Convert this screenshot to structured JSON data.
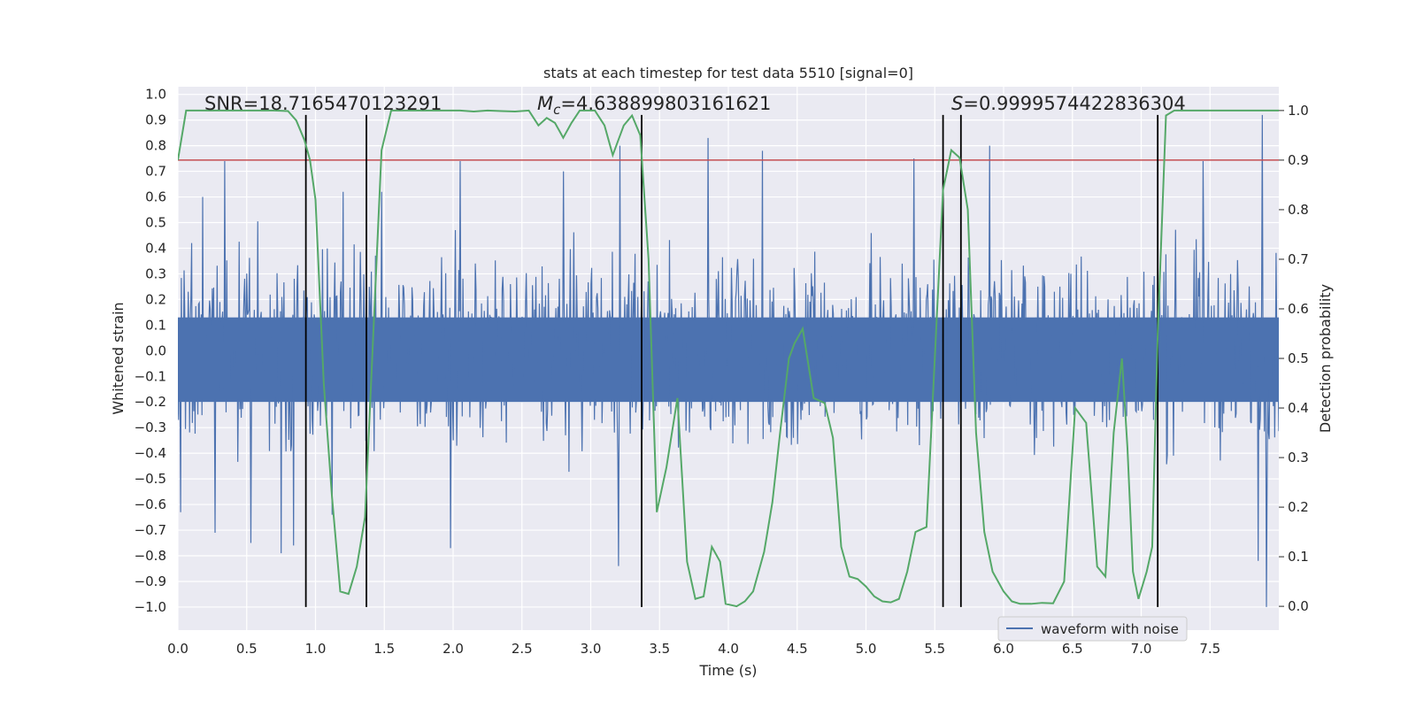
{
  "chart_data": {
    "type": "line",
    "title": "stats at each timestep for test data 5510 [signal=0]",
    "xlabel": "Time (s)",
    "ylabel": "Whitened strain",
    "y2label": "Detection probability",
    "xlim": [
      0,
      8.0
    ],
    "ylim": [
      -1.09,
      1.03
    ],
    "y2lim": [
      -0.048,
      1.048
    ],
    "xticks": [
      0.0,
      0.5,
      1.0,
      1.5,
      2.0,
      2.5,
      3.0,
      3.5,
      4.0,
      4.5,
      5.0,
      5.5,
      6.0,
      6.5,
      7.0,
      7.5
    ],
    "xtick_labels": [
      "0.0",
      "0.5",
      "1.0",
      "1.5",
      "2.0",
      "2.5",
      "3.0",
      "3.5",
      "4.0",
      "4.5",
      "5.0",
      "5.5",
      "6.0",
      "6.5",
      "7.0",
      "7.5"
    ],
    "yticks": [
      1.0,
      0.9,
      0.8,
      0.7,
      0.6,
      0.5,
      0.4,
      0.3,
      0.2,
      0.1,
      0.0,
      -0.1,
      -0.2,
      -0.3,
      -0.4,
      -0.5,
      -0.6,
      -0.7,
      -0.8,
      -0.9,
      -1.0
    ],
    "ytick_labels": [
      "1.0",
      "0.9",
      "0.8",
      "0.7",
      "0.6",
      "0.5",
      "0.4",
      "0.3",
      "0.2",
      "0.1",
      "0.0",
      "−0.1",
      "−0.2",
      "−0.3",
      "−0.4",
      "−0.5",
      "−0.6",
      "−0.7",
      "−0.8",
      "−0.9",
      "−1.0"
    ],
    "y2ticks": [
      1.0,
      0.9,
      0.8,
      0.7,
      0.6,
      0.5,
      0.4,
      0.3,
      0.2,
      0.1,
      0.0
    ],
    "y2tick_labels": [
      "1.0",
      "0.9",
      "0.8",
      "0.7",
      "0.6",
      "0.5",
      "0.4",
      "0.3",
      "0.2",
      "0.1",
      "0.0"
    ],
    "annotations": {
      "snr": "SNR=18.7165470123291",
      "mc_prefix": "M",
      "mc_sub": "c",
      "mc_value": "=4.638899803161621",
      "s_prefix": "S",
      "s_value": "=0.9999574422836304"
    },
    "threshold": {
      "value": 0.9,
      "axis": "right",
      "color": "#c44e52"
    },
    "vlines": [
      0.93,
      1.37,
      3.37,
      5.56,
      5.69,
      7.12
    ],
    "vline_ylim": [
      -1.0,
      0.92
    ],
    "series": [
      {
        "name": "waveform with noise",
        "color": "#4c72b0",
        "axis": "left",
        "noise_seed": 5510,
        "sample_count": 1600,
        "peaks": [
          {
            "t": 0.02,
            "v": -0.63
          },
          {
            "t": 0.1,
            "v": 0.42
          },
          {
            "t": 0.18,
            "v": 0.6
          },
          {
            "t": 0.27,
            "v": -0.71
          },
          {
            "t": 0.34,
            "v": 0.74
          },
          {
            "t": 0.53,
            "v": -0.75
          },
          {
            "t": 0.75,
            "v": -0.79
          },
          {
            "t": 0.84,
            "v": -0.76
          },
          {
            "t": 1.12,
            "v": -0.64
          },
          {
            "t": 1.2,
            "v": 0.62
          },
          {
            "t": 1.48,
            "v": 0.62
          },
          {
            "t": 1.98,
            "v": -0.77
          },
          {
            "t": 2.05,
            "v": 0.74
          },
          {
            "t": 2.8,
            "v": 0.7
          },
          {
            "t": 3.2,
            "v": -0.84
          },
          {
            "t": 3.21,
            "v": 0.8
          },
          {
            "t": 3.85,
            "v": 0.83
          },
          {
            "t": 4.25,
            "v": 0.78
          },
          {
            "t": 5.35,
            "v": 0.75
          },
          {
            "t": 5.9,
            "v": 0.8
          },
          {
            "t": 7.45,
            "v": 0.74
          },
          {
            "t": 7.85,
            "v": -0.82
          },
          {
            "t": 7.88,
            "v": 0.92
          },
          {
            "t": 7.91,
            "v": -1.0
          }
        ]
      },
      {
        "name": "detection probability",
        "color": "#55a868",
        "axis": "right",
        "x": [
          0.0,
          0.06,
          0.12,
          0.2,
          0.3,
          0.4,
          0.5,
          0.6,
          0.7,
          0.8,
          0.86,
          0.92,
          0.96,
          1.0,
          1.06,
          1.12,
          1.18,
          1.24,
          1.3,
          1.36,
          1.42,
          1.48,
          1.55,
          1.65,
          1.75,
          1.85,
          1.95,
          2.05,
          2.15,
          2.25,
          2.35,
          2.45,
          2.55,
          2.62,
          2.68,
          2.74,
          2.8,
          2.86,
          2.92,
          2.98,
          3.03,
          3.1,
          3.16,
          3.24,
          3.3,
          3.36,
          3.42,
          3.48,
          3.55,
          3.63,
          3.7,
          3.76,
          3.82,
          3.88,
          3.94,
          3.98,
          4.06,
          4.12,
          4.18,
          4.26,
          4.32,
          4.38,
          4.44,
          4.48,
          4.54,
          4.62,
          4.7,
          4.76,
          4.82,
          4.88,
          4.94,
          5.0,
          5.06,
          5.12,
          5.18,
          5.24,
          5.3,
          5.36,
          5.44,
          5.5,
          5.56,
          5.62,
          5.68,
          5.74,
          5.8,
          5.86,
          5.92,
          6.0,
          6.06,
          6.12,
          6.2,
          6.28,
          6.36,
          6.44,
          6.52,
          6.6,
          6.68,
          6.74,
          6.8,
          6.86,
          6.9,
          6.94,
          6.98,
          7.04,
          7.08,
          7.12,
          7.18,
          7.24,
          7.3,
          7.4,
          7.6,
          7.8,
          8.0
        ],
        "y": [
          0.9,
          1.0,
          1.0,
          1.0,
          1.0,
          1.0,
          1.0,
          1.0,
          1.0,
          0.999,
          0.98,
          0.94,
          0.9,
          0.82,
          0.45,
          0.22,
          0.03,
          0.025,
          0.08,
          0.18,
          0.55,
          0.92,
          1.0,
          1.0,
          1.0,
          1.0,
          1.0,
          1.0,
          0.998,
          1.0,
          0.999,
          0.998,
          1.0,
          0.97,
          0.985,
          0.975,
          0.945,
          0.975,
          1.0,
          1.0,
          1.0,
          0.97,
          0.91,
          0.97,
          0.99,
          0.95,
          0.7,
          0.19,
          0.28,
          0.42,
          0.09,
          0.015,
          0.02,
          0.12,
          0.09,
          0.005,
          0.0,
          0.01,
          0.03,
          0.11,
          0.21,
          0.36,
          0.5,
          0.53,
          0.56,
          0.42,
          0.41,
          0.34,
          0.12,
          0.06,
          0.055,
          0.04,
          0.02,
          0.01,
          0.008,
          0.015,
          0.07,
          0.15,
          0.16,
          0.5,
          0.84,
          0.92,
          0.905,
          0.8,
          0.35,
          0.15,
          0.07,
          0.03,
          0.01,
          0.005,
          0.005,
          0.007,
          0.006,
          0.05,
          0.4,
          0.37,
          0.08,
          0.06,
          0.35,
          0.5,
          0.32,
          0.07,
          0.015,
          0.07,
          0.12,
          0.55,
          0.99,
          1.0,
          1.0,
          1.0,
          1.0,
          1.0,
          1.0
        ]
      }
    ],
    "legend": {
      "label": "waveform with noise",
      "placement": "lower-right"
    }
  },
  "colors": {
    "axes_bg": "#eaeaf2",
    "grid": "#ffffff",
    "vline": "#000000"
  }
}
